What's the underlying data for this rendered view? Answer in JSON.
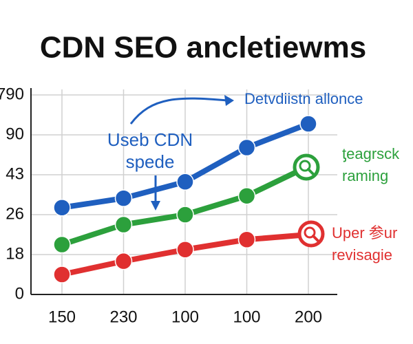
{
  "chart_data": {
    "type": "line",
    "title": "CDN SEO ancletiewms",
    "categories": [
      "150",
      "230",
      "100",
      "100",
      "200"
    ],
    "yticks": [
      0,
      18,
      26,
      43,
      90,
      790
    ],
    "ylim": [
      0,
      790
    ],
    "grid": true,
    "series": [
      {
        "color": "#1f5fbf",
        "values": [
          29,
          33,
          40,
          75,
          283
        ]
      },
      {
        "color": "#2ca03c",
        "values": [
          20,
          24,
          26,
          34,
          53
        ]
      },
      {
        "color": "#e03030",
        "values": [
          9,
          15,
          19,
          21,
          22
        ]
      }
    ],
    "annotations": [
      {
        "lines": [
          "Useb CDN",
          "spede"
        ],
        "color": "#1f5fbf"
      },
      {
        "lines": [
          "Detvdiistn allonce"
        ],
        "color": "#1f5fbf"
      },
      {
        "lines": [
          "ƫeagrsck",
          "raming"
        ],
        "color": "#2ca03c"
      },
      {
        "lines": [
          "Uper 参ur",
          "revisagie"
        ],
        "color": "#e03030"
      }
    ]
  }
}
